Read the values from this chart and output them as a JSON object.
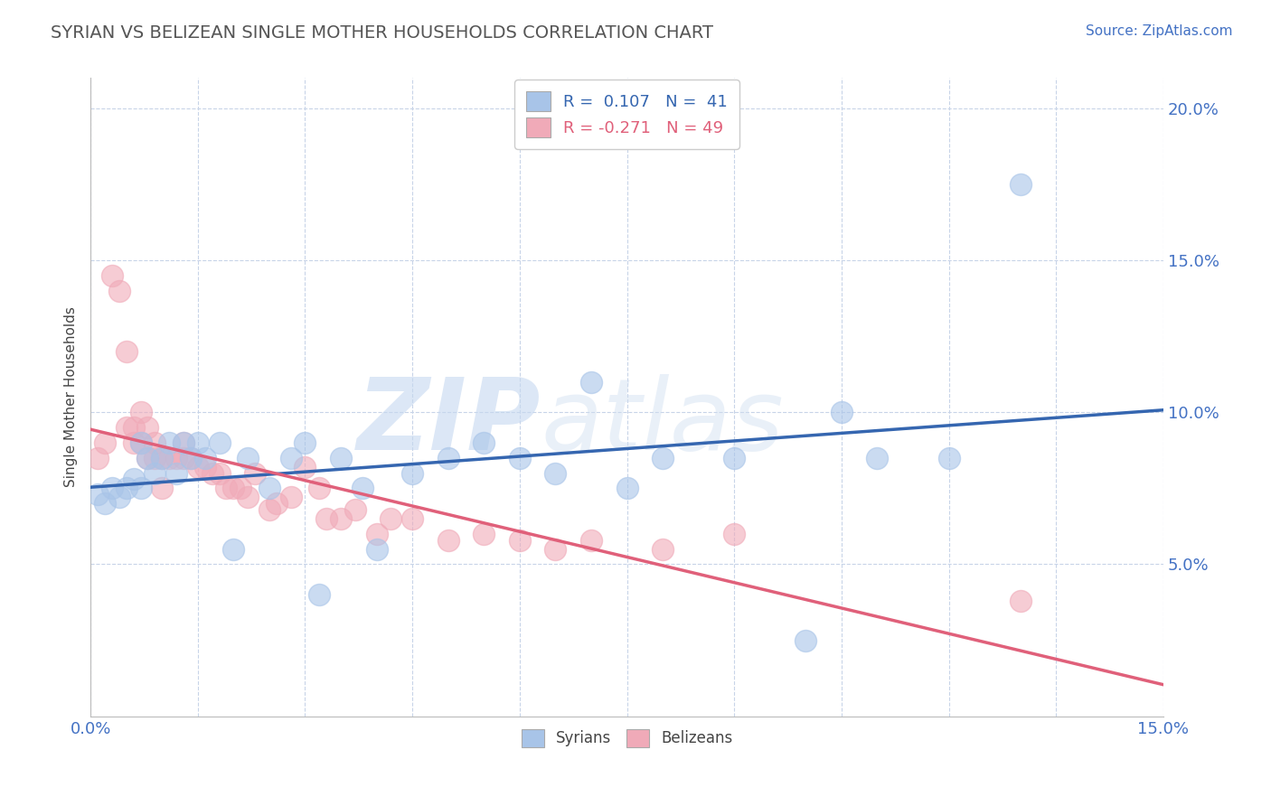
{
  "title": "SYRIAN VS BELIZEAN SINGLE MOTHER HOUSEHOLDS CORRELATION CHART",
  "source": "Source: ZipAtlas.com",
  "ylabel": "Single Mother Households",
  "xlim": [
    0.0,
    0.15
  ],
  "ylim": [
    0.0,
    0.21
  ],
  "x_tick_positions": [
    0.0,
    0.15
  ],
  "x_tick_labels": [
    "0.0%",
    "15.0%"
  ],
  "y_tick_positions": [
    0.05,
    0.1,
    0.15,
    0.2
  ],
  "y_tick_labels": [
    "5.0%",
    "10.0%",
    "15.0%",
    "20.0%"
  ],
  "syrian_color": "#a8c4e8",
  "belizean_color": "#f0aab8",
  "syrian_line_color": "#3566b0",
  "belizean_line_color": "#e0607a",
  "R_syrian": 0.107,
  "N_syrian": 41,
  "R_belizean": -0.271,
  "N_belizean": 49,
  "background_color": "#ffffff",
  "grid_color": "#c8d4e8",
  "syrian_x": [
    0.001,
    0.002,
    0.003,
    0.004,
    0.005,
    0.006,
    0.007,
    0.007,
    0.008,
    0.009,
    0.01,
    0.011,
    0.012,
    0.013,
    0.014,
    0.015,
    0.016,
    0.018,
    0.02,
    0.022,
    0.025,
    0.028,
    0.03,
    0.032,
    0.035,
    0.038,
    0.04,
    0.045,
    0.05,
    0.055,
    0.06,
    0.065,
    0.07,
    0.075,
    0.08,
    0.09,
    0.1,
    0.105,
    0.11,
    0.12,
    0.13
  ],
  "syrian_y": [
    0.073,
    0.07,
    0.075,
    0.072,
    0.075,
    0.078,
    0.075,
    0.09,
    0.085,
    0.08,
    0.085,
    0.09,
    0.08,
    0.09,
    0.085,
    0.09,
    0.085,
    0.09,
    0.055,
    0.085,
    0.075,
    0.085,
    0.09,
    0.04,
    0.085,
    0.075,
    0.055,
    0.08,
    0.085,
    0.09,
    0.085,
    0.08,
    0.11,
    0.075,
    0.085,
    0.085,
    0.025,
    0.1,
    0.085,
    0.085,
    0.175
  ],
  "belizean_x": [
    0.001,
    0.002,
    0.003,
    0.004,
    0.005,
    0.005,
    0.006,
    0.006,
    0.007,
    0.007,
    0.008,
    0.008,
    0.009,
    0.009,
    0.01,
    0.01,
    0.011,
    0.012,
    0.013,
    0.013,
    0.014,
    0.015,
    0.016,
    0.017,
    0.018,
    0.019,
    0.02,
    0.021,
    0.022,
    0.023,
    0.025,
    0.026,
    0.028,
    0.03,
    0.032,
    0.033,
    0.035,
    0.037,
    0.04,
    0.042,
    0.045,
    0.05,
    0.055,
    0.06,
    0.065,
    0.07,
    0.08,
    0.09,
    0.13
  ],
  "belizean_y": [
    0.085,
    0.09,
    0.145,
    0.14,
    0.12,
    0.095,
    0.095,
    0.09,
    0.1,
    0.09,
    0.095,
    0.085,
    0.09,
    0.085,
    0.085,
    0.075,
    0.085,
    0.085,
    0.085,
    0.09,
    0.085,
    0.082,
    0.082,
    0.08,
    0.08,
    0.075,
    0.075,
    0.075,
    0.072,
    0.08,
    0.068,
    0.07,
    0.072,
    0.082,
    0.075,
    0.065,
    0.065,
    0.068,
    0.06,
    0.065,
    0.065,
    0.058,
    0.06,
    0.058,
    0.055,
    0.058,
    0.055,
    0.06,
    0.038
  ]
}
